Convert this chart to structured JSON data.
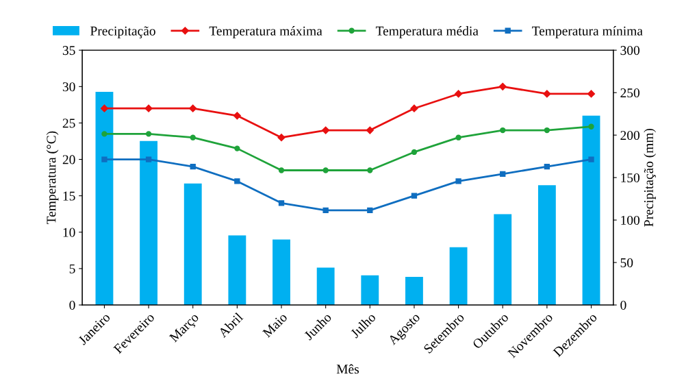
{
  "chart_data": {
    "type": "line",
    "categories": [
      "Janeiro",
      "Fevereiro",
      "Março",
      "Abril",
      "Maio",
      "Junho",
      "Julho",
      "Agosto",
      "Setembro",
      "Outubro",
      "Novembro",
      "Dezembro"
    ],
    "xlabel": "Mês",
    "ylabel": "Temperatura (°C)",
    "y2label": "Precipitação (mm)",
    "ylim": [
      0,
      35
    ],
    "yticks": [
      0,
      5,
      10,
      15,
      20,
      25,
      30,
      35
    ],
    "y2lim": [
      0,
      300
    ],
    "y2ticks": [
      0,
      50,
      100,
      150,
      200,
      250,
      300
    ],
    "legend": "top",
    "grid": false,
    "series": [
      {
        "name": "Precipitação",
        "type": "bar",
        "axis": "y2",
        "color": "#00b0f0",
        "values": [
          251,
          193,
          143,
          82,
          77,
          44,
          35,
          33,
          68,
          107,
          141,
          223
        ]
      },
      {
        "name": "Temperatura máxima",
        "color": "#e81010",
        "marker": "diamond",
        "values": [
          27,
          27,
          27,
          26,
          23,
          24,
          24,
          27,
          29,
          30,
          29,
          29
        ]
      },
      {
        "name": "Temperatura média",
        "color": "#1fa33a",
        "marker": "circle",
        "values": [
          23.5,
          23.5,
          23,
          21.5,
          18.5,
          18.5,
          18.5,
          21,
          23,
          24,
          24,
          24.5
        ]
      },
      {
        "name": "Temperatura mínima",
        "color": "#0f6ec0",
        "marker": "square",
        "values": [
          20,
          20,
          19,
          17,
          14,
          13,
          13,
          15,
          17,
          18,
          19,
          20
        ]
      }
    ]
  }
}
